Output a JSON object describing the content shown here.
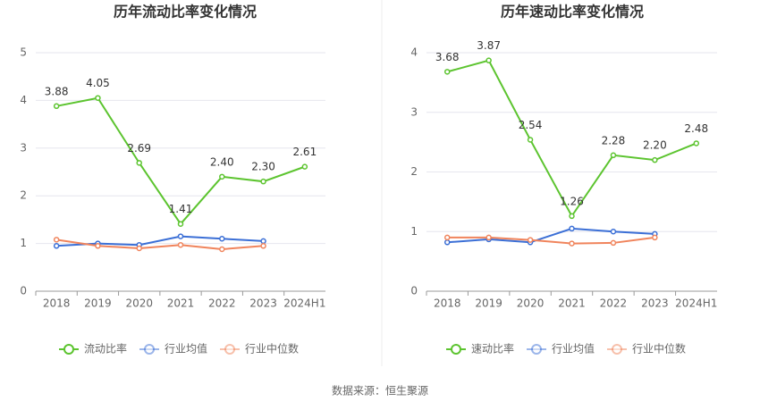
{
  "chart_data": [
    {
      "type": "line",
      "title": "历年流动比率变化情况",
      "categories": [
        "2018",
        "2019",
        "2020",
        "2021",
        "2022",
        "2023",
        "2024H1"
      ],
      "ylim": [
        0,
        5
      ],
      "yticks": [
        0,
        1,
        2,
        3,
        4,
        5
      ],
      "grid": true,
      "legend": "bottom",
      "series": [
        {
          "name": "流动比率",
          "color": "#5cc42f",
          "values": [
            3.88,
            4.05,
            2.69,
            1.41,
            2.4,
            2.3,
            2.61
          ],
          "value_labels": [
            "3.88",
            "4.05",
            "2.69",
            "1.41",
            "2.40",
            "2.30",
            "2.61"
          ]
        },
        {
          "name": "行业均值",
          "color": "#3b6fd6",
          "values": [
            0.95,
            1.0,
            0.97,
            1.15,
            1.1,
            1.05,
            null
          ]
        },
        {
          "name": "行业中位数",
          "color": "#f0845c",
          "values": [
            1.08,
            0.95,
            0.9,
            0.97,
            0.88,
            0.95,
            null
          ]
        }
      ]
    },
    {
      "type": "line",
      "title": "历年速动比率变化情况",
      "categories": [
        "2018",
        "2019",
        "2020",
        "2021",
        "2022",
        "2023",
        "2024H1"
      ],
      "ylim": [
        0,
        4
      ],
      "yticks": [
        0,
        1,
        2,
        3,
        4
      ],
      "grid": true,
      "legend": "bottom",
      "series": [
        {
          "name": "速动比率",
          "color": "#5cc42f",
          "values": [
            3.68,
            3.87,
            2.54,
            1.26,
            2.28,
            2.2,
            2.48
          ],
          "value_labels": [
            "3.68",
            "3.87",
            "2.54",
            "1.26",
            "2.28",
            "2.20",
            "2.48"
          ]
        },
        {
          "name": "行业均值",
          "color": "#3b6fd6",
          "values": [
            0.82,
            0.87,
            0.82,
            1.05,
            1.0,
            0.96,
            null
          ]
        },
        {
          "name": "行业中位数",
          "color": "#f0845c",
          "values": [
            0.9,
            0.9,
            0.86,
            0.8,
            0.81,
            0.9,
            null
          ]
        }
      ]
    }
  ],
  "source": "数据来源：恒生聚源"
}
